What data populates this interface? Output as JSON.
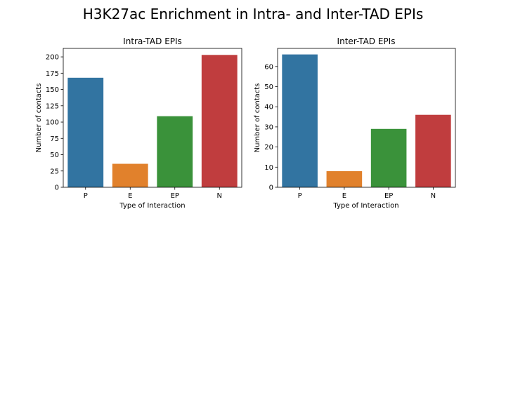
{
  "figure": {
    "title": "H3K27ac Enrichment in Intra- and Inter-TAD EPIs"
  },
  "colors": {
    "P": "#3274a1",
    "E": "#e1812c",
    "EP": "#3a923a",
    "N": "#c03d3e"
  },
  "chart_data": [
    {
      "type": "bar",
      "title": "Intra-TAD EPIs",
      "xlabel": "Type of Interaction",
      "ylabel": "Number of contacts",
      "categories": [
        "P",
        "E",
        "EP",
        "N"
      ],
      "values": [
        168,
        36,
        109,
        203
      ],
      "ylim": [
        0,
        213
      ],
      "yticks": [
        0,
        25,
        50,
        75,
        100,
        125,
        150,
        175,
        200
      ],
      "grid": false,
      "legend": "none"
    },
    {
      "type": "bar",
      "title": "Inter-TAD EPIs",
      "xlabel": "Type of Interaction",
      "ylabel": "Number of contacts",
      "categories": [
        "P",
        "E",
        "EP",
        "N"
      ],
      "values": [
        66,
        8,
        29,
        36
      ],
      "ylim": [
        0,
        69
      ],
      "yticks": [
        0,
        10,
        20,
        30,
        40,
        50,
        60
      ],
      "grid": false,
      "legend": "none"
    }
  ]
}
